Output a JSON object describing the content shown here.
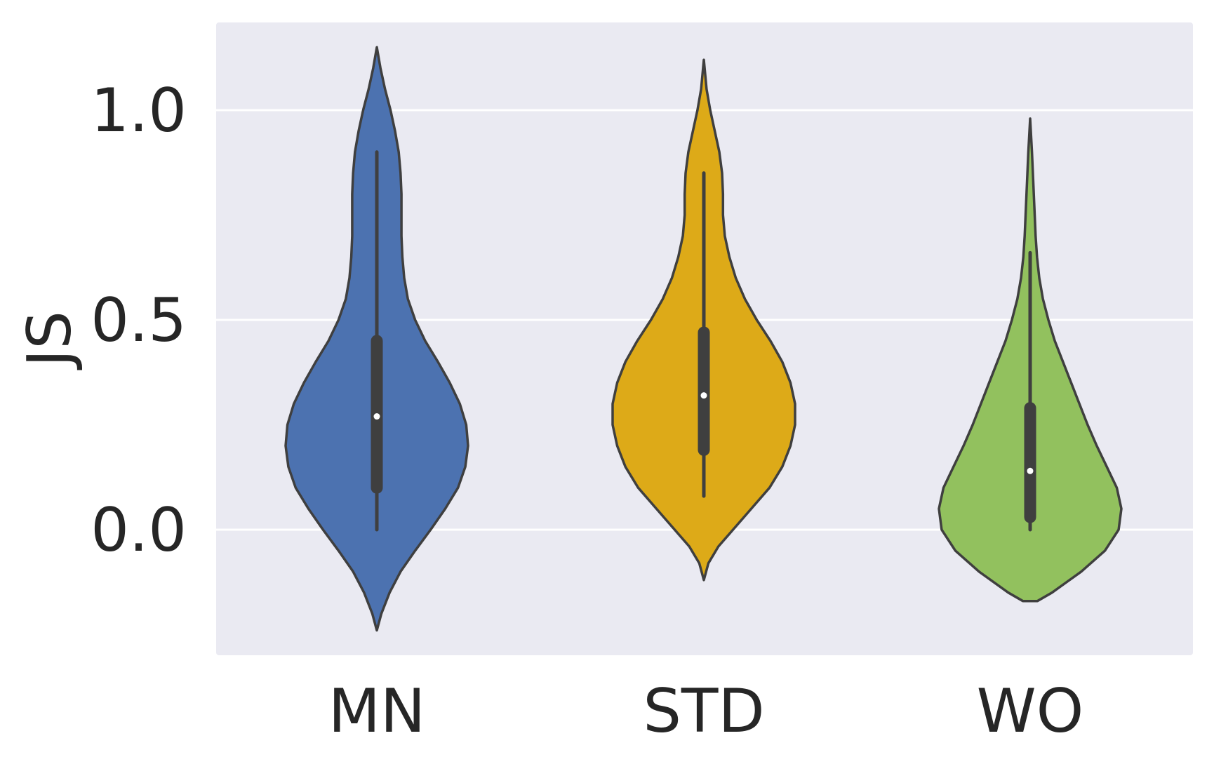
{
  "chart_data": {
    "type": "violin",
    "ylabel": "JS",
    "ylim": [
      -0.3,
      1.2
    ],
    "yticks": [
      {
        "value": 0.0,
        "label": "0.0"
      },
      {
        "value": 0.5,
        "label": "0.5"
      },
      {
        "value": 1.0,
        "label": "1.0"
      }
    ],
    "grid": true,
    "background_color": "#EAEAF2",
    "outline_color": "#3F3F3F",
    "categories": [
      "MN",
      "STD",
      "WO"
    ],
    "series": [
      {
        "category": "MN",
        "color": "#4C72B0",
        "min_extent": -0.24,
        "max_extent": 1.15,
        "whisker_low": 0.0,
        "whisker_high": 0.9,
        "q1": 0.1,
        "q3": 0.45,
        "median": 0.27,
        "density": [
          [
            -0.24,
            0.0
          ],
          [
            -0.2,
            0.05
          ],
          [
            -0.15,
            0.14
          ],
          [
            -0.1,
            0.26
          ],
          [
            -0.05,
            0.42
          ],
          [
            0.0,
            0.59
          ],
          [
            0.05,
            0.75
          ],
          [
            0.1,
            0.89
          ],
          [
            0.15,
            0.97
          ],
          [
            0.2,
            1.0
          ],
          [
            0.25,
            0.98
          ],
          [
            0.3,
            0.91
          ],
          [
            0.35,
            0.8
          ],
          [
            0.4,
            0.67
          ],
          [
            0.45,
            0.53
          ],
          [
            0.5,
            0.42
          ],
          [
            0.55,
            0.34
          ],
          [
            0.6,
            0.3
          ],
          [
            0.65,
            0.28
          ],
          [
            0.7,
            0.27
          ],
          [
            0.75,
            0.27
          ],
          [
            0.8,
            0.27
          ],
          [
            0.85,
            0.26
          ],
          [
            0.9,
            0.24
          ],
          [
            0.95,
            0.2
          ],
          [
            1.0,
            0.15
          ],
          [
            1.05,
            0.09
          ],
          [
            1.1,
            0.04
          ],
          [
            1.15,
            0.0
          ]
        ]
      },
      {
        "category": "STD",
        "color": "#DDAA18",
        "min_extent": -0.12,
        "max_extent": 1.12,
        "whisker_low": 0.08,
        "whisker_high": 0.85,
        "q1": 0.19,
        "q3": 0.47,
        "median": 0.32,
        "density": [
          [
            -0.12,
            0.0
          ],
          [
            -0.08,
            0.05
          ],
          [
            -0.04,
            0.16
          ],
          [
            0.0,
            0.32
          ],
          [
            0.05,
            0.52
          ],
          [
            0.1,
            0.72
          ],
          [
            0.15,
            0.86
          ],
          [
            0.2,
            0.95
          ],
          [
            0.25,
            1.0
          ],
          [
            0.3,
            1.0
          ],
          [
            0.35,
            0.95
          ],
          [
            0.4,
            0.86
          ],
          [
            0.45,
            0.73
          ],
          [
            0.5,
            0.58
          ],
          [
            0.55,
            0.45
          ],
          [
            0.6,
            0.35
          ],
          [
            0.65,
            0.28
          ],
          [
            0.7,
            0.23
          ],
          [
            0.75,
            0.21
          ],
          [
            0.8,
            0.21
          ],
          [
            0.85,
            0.2
          ],
          [
            0.9,
            0.17
          ],
          [
            0.95,
            0.12
          ],
          [
            1.0,
            0.07
          ],
          [
            1.05,
            0.03
          ],
          [
            1.12,
            0.0
          ]
        ]
      },
      {
        "category": "WO",
        "color": "#92C15E",
        "min_extent": -0.17,
        "max_extent": 0.98,
        "whisker_low": 0.0,
        "whisker_high": 0.66,
        "q1": 0.03,
        "q3": 0.29,
        "median": 0.14,
        "density": [
          [
            -0.17,
            0.08
          ],
          [
            -0.15,
            0.24
          ],
          [
            -0.1,
            0.56
          ],
          [
            -0.05,
            0.82
          ],
          [
            0.0,
            0.97
          ],
          [
            0.05,
            1.0
          ],
          [
            0.1,
            0.95
          ],
          [
            0.15,
            0.84
          ],
          [
            0.2,
            0.73
          ],
          [
            0.25,
            0.63
          ],
          [
            0.3,
            0.54
          ],
          [
            0.35,
            0.45
          ],
          [
            0.4,
            0.36
          ],
          [
            0.45,
            0.27
          ],
          [
            0.5,
            0.2
          ],
          [
            0.55,
            0.14
          ],
          [
            0.6,
            0.1
          ],
          [
            0.65,
            0.075
          ],
          [
            0.7,
            0.06
          ],
          [
            0.75,
            0.05
          ],
          [
            0.8,
            0.04
          ],
          [
            0.85,
            0.03
          ],
          [
            0.9,
            0.02
          ],
          [
            0.98,
            0.0
          ]
        ]
      }
    ]
  }
}
